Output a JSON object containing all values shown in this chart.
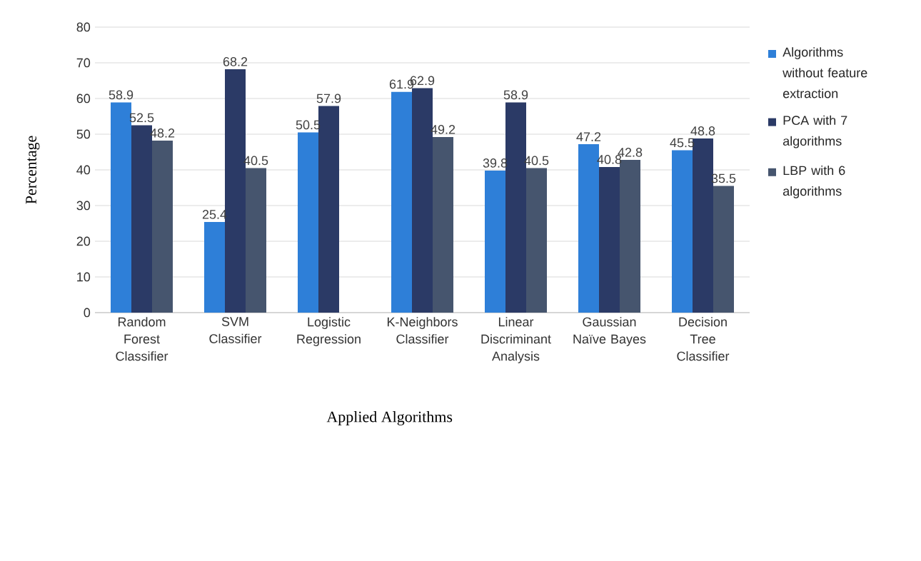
{
  "chart_data": {
    "type": "bar",
    "xlabel": "Applied Algorithms",
    "ylabel": "Percentage",
    "categories": [
      "Random Forest Classifier",
      "SVM Classifier",
      "Logistic Regression",
      "K-Neighbors Classifier",
      "Linear Discriminant Analysis",
      "Gaussian Naïve Bayes",
      "Decision Tree Classifier"
    ],
    "series": [
      {
        "name": "Algorithms without feature extraction",
        "color": "#2e7fd8",
        "values": [
          58.9,
          25.4,
          50.5,
          61.9,
          39.8,
          47.2,
          45.5
        ]
      },
      {
        "name": "PCA with 7 algorithms",
        "color": "#2b3a66",
        "values": [
          52.5,
          68.2,
          57.9,
          62.9,
          58.9,
          40.8,
          48.8
        ]
      },
      {
        "name": "LBP with 6 algorithms",
        "color": "#46556e",
        "values": [
          48.2,
          40.5,
          null,
          49.2,
          40.5,
          42.8,
          35.5
        ]
      }
    ],
    "ylim": [
      0,
      80
    ],
    "yticks": [
      0,
      10,
      20,
      30,
      40,
      50,
      60,
      70,
      80
    ],
    "grid": "y",
    "legend": "right",
    "data_labels": true
  }
}
